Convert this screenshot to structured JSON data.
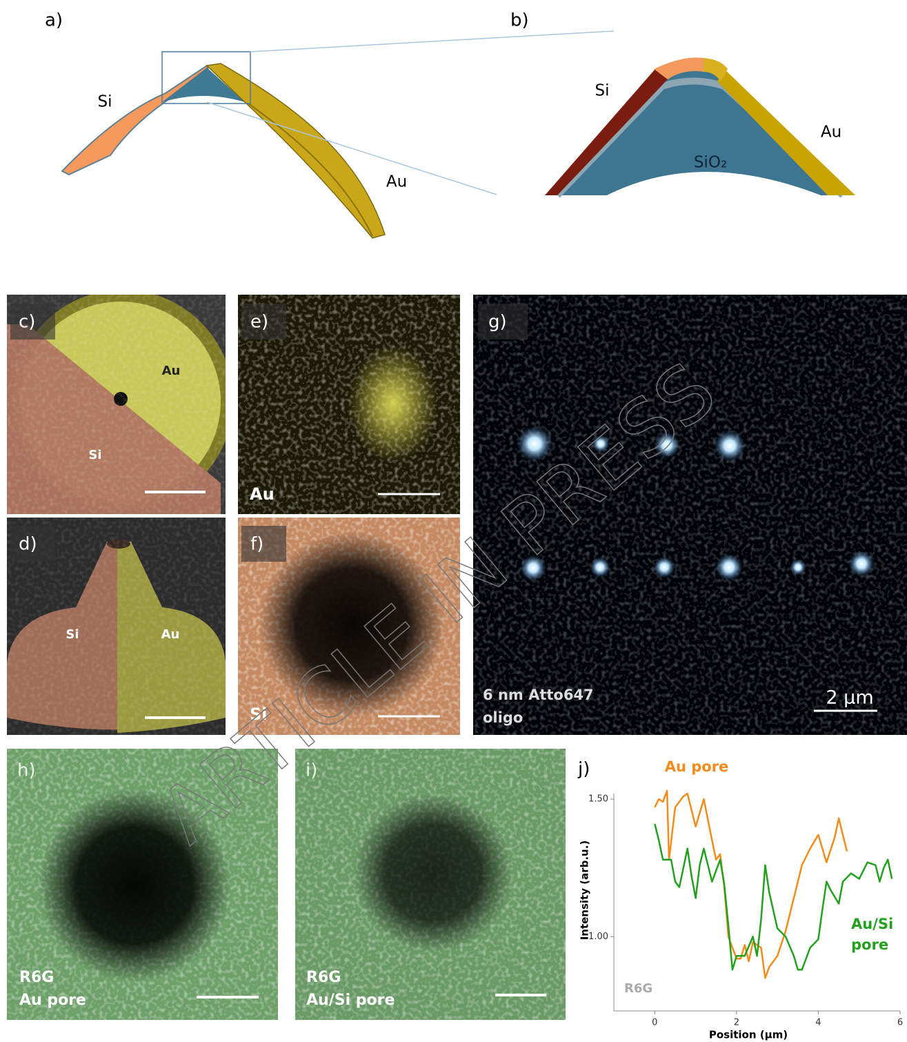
{
  "panel_a": {
    "label": "a)",
    "si": "Si",
    "au": "Au"
  },
  "panel_b": {
    "label": "b)",
    "si": "Si",
    "au": "Au",
    "sio2": "SiO₂"
  },
  "panel_c": {
    "label": "c)",
    "au": "Au",
    "si": "Si"
  },
  "panel_d": {
    "label": "d)",
    "si": "Si",
    "au": "Au"
  },
  "panel_e": {
    "label": "e)",
    "element": "Au"
  },
  "panel_f": {
    "label": "f)",
    "element": "Si"
  },
  "panel_g": {
    "label": "g)",
    "caption": [
      "6 nm Atto647",
      "oligo"
    ],
    "scale": "2 µm"
  },
  "panel_h": {
    "label": "h)",
    "caption": [
      "R6G",
      "Au pore"
    ]
  },
  "panel_i": {
    "label": "i)",
    "caption": [
      "R6G",
      "Au/Si pore"
    ]
  },
  "watermark": "ARTICLE IN PRESS",
  "chart_data": {
    "type": "line",
    "panel_label": "j)",
    "annotation": "R6G",
    "x_label": "Position (µm)",
    "y_label": "Intensity (arb.u.)",
    "xlim": [
      -1,
      6
    ],
    "ylim": [
      0.73,
      1.52
    ],
    "xticks": [
      0,
      2,
      4,
      6
    ],
    "yticks": [
      {
        "value": 1.0,
        "label": "1.00"
      },
      {
        "value": 1.5,
        "label": "1.50"
      }
    ],
    "series": [
      {
        "name": "Au pore",
        "color": "#f28c1c",
        "x": [
          0,
          0.1,
          0.2,
          0.3,
          0.35,
          0.5,
          0.7,
          0.8,
          1.0,
          1.1,
          1.2,
          1.4,
          1.5,
          1.6,
          1.7,
          1.8,
          1.9,
          2.0,
          2.1,
          2.2,
          2.3,
          2.4,
          2.6,
          2.7,
          2.8,
          3.0,
          3.2,
          3.4,
          3.6,
          3.8,
          4.0,
          4.2,
          4.4,
          4.5,
          4.7
        ],
        "values": [
          1.47,
          1.5,
          1.49,
          1.53,
          1.28,
          1.47,
          1.51,
          1.52,
          1.4,
          1.45,
          1.5,
          1.35,
          1.28,
          1.3,
          1.18,
          1.0,
          0.96,
          0.92,
          0.92,
          0.97,
          0.91,
          0.98,
          0.96,
          0.85,
          0.89,
          0.93,
          1.02,
          1.14,
          1.26,
          1.32,
          1.37,
          1.27,
          1.36,
          1.43,
          1.31
        ]
      },
      {
        "name": "Au/Si pore",
        "color": "#22a01e",
        "x": [
          0,
          0.1,
          0.2,
          0.4,
          0.5,
          0.6,
          0.8,
          0.9,
          1.0,
          1.1,
          1.2,
          1.4,
          1.6,
          1.7,
          1.8,
          1.9,
          2.0,
          2.2,
          2.4,
          2.5,
          2.6,
          2.7,
          2.8,
          3.0,
          3.2,
          3.4,
          3.5,
          3.6,
          3.8,
          4.0,
          4.1,
          4.2,
          4.3,
          4.5,
          4.6,
          4.8,
          5.0,
          5.2,
          5.4,
          5.5,
          5.6,
          5.7,
          5.8
        ],
        "values": [
          1.41,
          1.35,
          1.28,
          1.28,
          1.2,
          1.18,
          1.32,
          1.22,
          1.14,
          1.26,
          1.32,
          1.2,
          1.28,
          1.19,
          1.04,
          0.88,
          0.93,
          0.93,
          1.0,
          0.93,
          1.06,
          1.26,
          1.16,
          1.03,
          1.0,
          0.93,
          0.88,
          0.88,
          0.96,
          0.99,
          1.1,
          1.2,
          1.17,
          1.12,
          1.2,
          1.23,
          1.21,
          1.27,
          1.26,
          1.2,
          1.25,
          1.28,
          1.21
        ]
      }
    ]
  }
}
